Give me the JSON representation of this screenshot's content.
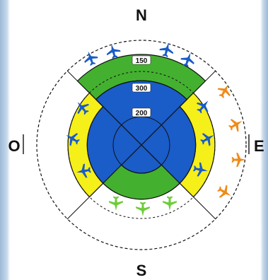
{
  "compass": {
    "north": "N",
    "south": "S",
    "east": "E",
    "west": "O"
  },
  "rings": [
    {
      "label": "150"
    },
    {
      "label": "300"
    },
    {
      "label": "200"
    }
  ],
  "colors": {
    "dark_blue": "#1a5cc8",
    "green": "#44b030",
    "yellow": "#f5ef1a",
    "orange": "#f08a1a",
    "light_green": "#6ccc3a",
    "outline": "#111111"
  },
  "icons": {
    "aircraft": "airplane-icon"
  }
}
